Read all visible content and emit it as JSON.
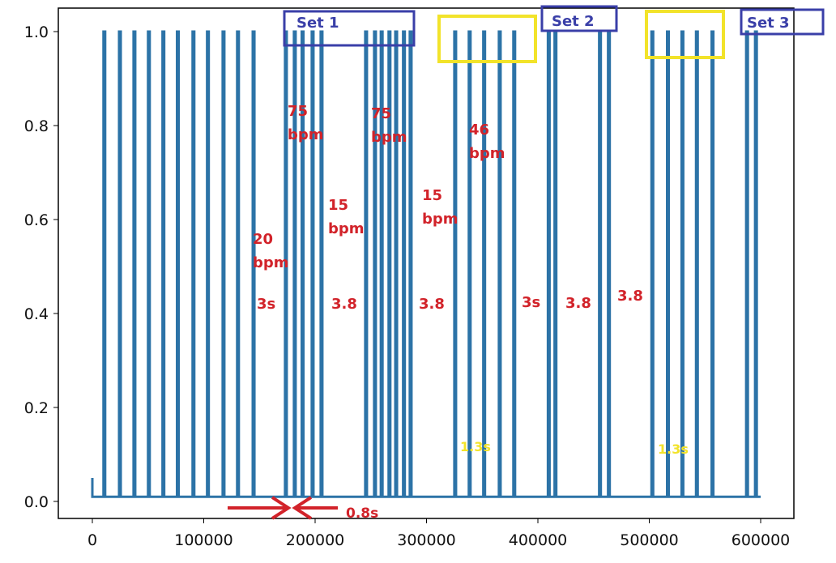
{
  "chart_data": {
    "type": "line",
    "title": "",
    "xlabel": "",
    "ylabel": "",
    "xlim": [
      -5000,
      628000
    ],
    "ylim": [
      -0.05,
      1.05
    ],
    "x_ticks": [
      0,
      100000,
      200000,
      300000,
      400000,
      500000,
      600000
    ],
    "x_tick_labels": [
      "0",
      "100000",
      "200000",
      "300000",
      "400000",
      "500000",
      "600000"
    ],
    "y_ticks": [
      0.0,
      0.2,
      0.4,
      0.6,
      0.8,
      1.0
    ],
    "y_tick_labels": [
      "0.0",
      "0.2",
      "0.4",
      "0.6",
      "0.8",
      "1.0"
    ],
    "grid": false,
    "baseline": 0.01,
    "initial_blip": {
      "x": 0,
      "y": 0.05
    },
    "series": [
      {
        "color": "#2d73a7",
        "pulse_width": 1500,
        "pulse_height": 1.0,
        "pulse_x": [
          10000,
          24000,
          37000,
          50000,
          63000,
          76000,
          90000,
          103000,
          117000,
          130000,
          144000,
          173000,
          181000,
          188000,
          197000,
          205000,
          245000,
          253000,
          259000,
          266000,
          272000,
          279000,
          285000,
          325000,
          338000,
          351000,
          365000,
          378000,
          409000,
          415000,
          455000,
          463000,
          502000,
          516000,
          529000,
          542000,
          556000,
          587000,
          595000
        ]
      }
    ],
    "annotations": {
      "sets": [
        "Set 1",
        "Set 2",
        "Set 3"
      ],
      "rates": [
        {
          "line1": "20",
          "line2": "bpm"
        },
        {
          "line1": "75",
          "line2": "bpm"
        },
        {
          "line1": "15",
          "line2": "bpm"
        },
        {
          "line1": "75",
          "line2": "bpm"
        },
        {
          "line1": "15",
          "line2": "bpm"
        },
        {
          "line1": "46",
          "line2": "bpm"
        }
      ],
      "durations": [
        "3s",
        "3.8",
        "3.8",
        "3s",
        "3.8",
        "3.8"
      ],
      "short_gaps": [
        "1.3s",
        "1.3s"
      ],
      "arrow_label": "0.8s"
    },
    "colors": {
      "line": "#2d73a7",
      "annotation_red": "#d2232a",
      "highlight_yellow": "#f2e32a",
      "set_box_blue": "#3a3fa8"
    }
  }
}
